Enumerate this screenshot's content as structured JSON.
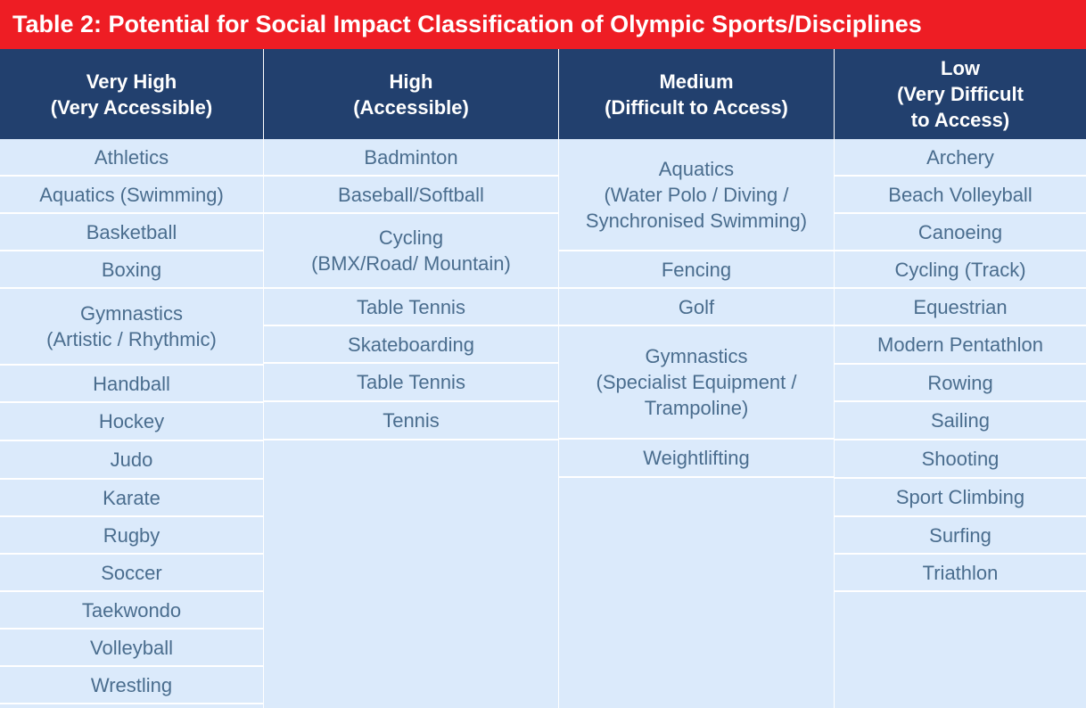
{
  "title": "Table 2: Potential for Social Impact Classification of Olympic Sports/Disciplines",
  "columns": [
    {
      "header": "Very High\n(Very Accessible)",
      "items": [
        "Athletics",
        "Aquatics (Swimming)",
        "Basketball",
        "Boxing",
        "Gymnastics\n(Artistic / Rhythmic)",
        "Handball",
        "Hockey",
        "Judo",
        "Karate",
        "Rugby",
        "Soccer",
        "Taekwondo",
        "Volleyball",
        "Wrestling"
      ]
    },
    {
      "header": "High\n(Accessible)",
      "items": [
        "Badminton",
        "Baseball/Softball",
        "Cycling\n(BMX/Road/ Mountain)",
        "Table Tennis",
        "Skateboarding",
        "Table Tennis",
        "Tennis"
      ]
    },
    {
      "header": "Medium\n(Difficult to Access)",
      "items": [
        "Aquatics\n(Water Polo / Diving /\nSynchronised Swimming)",
        "Fencing",
        "Golf",
        "Gymnastics\n(Specialist Equipment /\nTrampoline)",
        "Weightlifting"
      ]
    },
    {
      "header": "Low\n(Very Difficult\nto Access)",
      "items": [
        "Archery",
        "Beach Volleyball",
        "Canoeing",
        "Cycling (Track)",
        "Equestrian",
        "Modern Pentathlon",
        "Rowing",
        "Sailing",
        "Shooting",
        "Sport Climbing",
        "Surfing",
        "Triathlon"
      ]
    }
  ],
  "colors": {
    "title_background": "#ee1d24",
    "header_background": "#22406e",
    "cell_background": "#dbeafb",
    "cell_text": "#4a6d8e"
  }
}
